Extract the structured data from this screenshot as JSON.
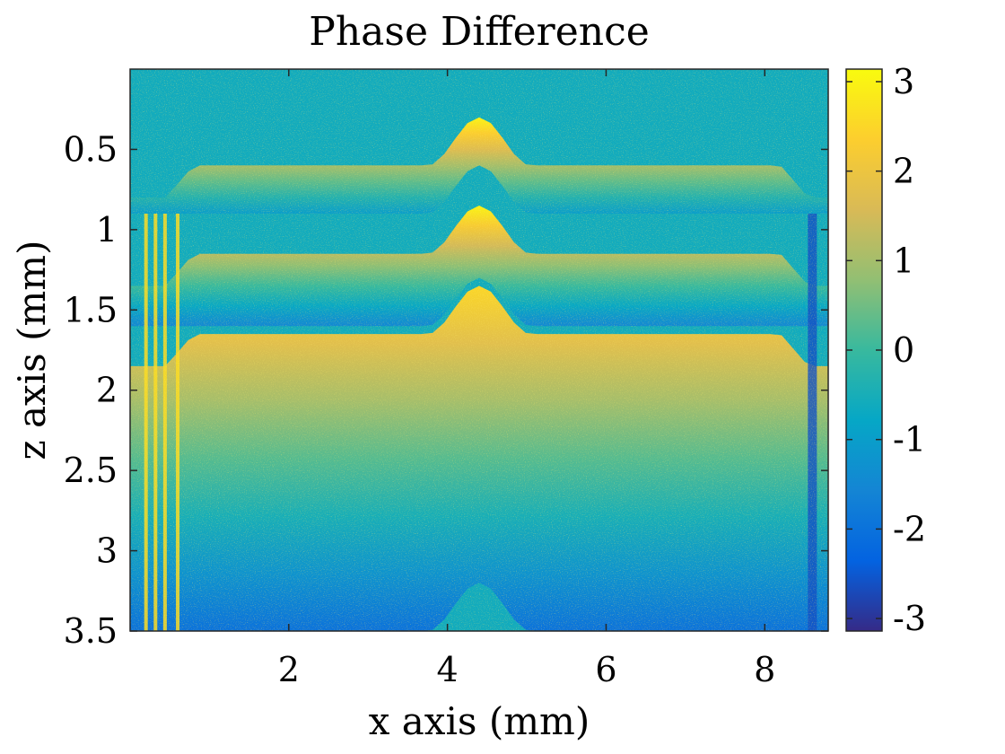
{
  "chart_data": {
    "type": "heatmap",
    "title": "Phase Difference",
    "xlabel": "x axis (mm)",
    "ylabel": "z axis (mm)",
    "xlim": [
      0,
      8.8
    ],
    "ylim": [
      0,
      3.5
    ],
    "y_direction": "reversed",
    "x_ticks": [
      2,
      4,
      6,
      8
    ],
    "x_tick_labels": [
      "2",
      "4",
      "6",
      "8"
    ],
    "y_ticks": [
      0.5,
      1,
      1.5,
      2,
      2.5,
      3,
      3.5
    ],
    "y_tick_labels": [
      "0.5",
      "1",
      "1.5",
      "2",
      "2.5",
      "3",
      "3.5"
    ],
    "colorbar": {
      "range": [
        -3.14,
        3.14
      ],
      "ticks": [
        3,
        2,
        1,
        0,
        -1,
        -2,
        -3
      ],
      "tick_labels": [
        "3",
        "2",
        "1",
        "0",
        "-1",
        "-2",
        "-3"
      ],
      "colormap": "parula",
      "colors": [
        "#352a87",
        "#0363e1",
        "#1485d4",
        "#06a7c6",
        "#38b99e",
        "#92bf73",
        "#d9ba56",
        "#fcce2e",
        "#f9fb0e"
      ]
    },
    "bands": [
      {
        "description": "wrapped phase fringe",
        "z_top_mm": 0.6,
        "z_bottom_mm": 0.9,
        "value_from": 3.0,
        "value_to": -1.0
      },
      {
        "description": "wrapped phase fringe",
        "z_top_mm": 1.15,
        "z_bottom_mm": 1.6,
        "value_from": 3.0,
        "value_to": -1.5
      },
      {
        "description": "noisy region",
        "z_top_mm": 1.65,
        "z_bottom_mm": 3.5,
        "value_from": 2.5,
        "value_to": -2.0
      }
    ],
    "bump": {
      "x_center_mm": 4.4,
      "width_mm": 1.3,
      "z_shift_mm": -0.3
    },
    "grid": false,
    "legend": "none"
  }
}
